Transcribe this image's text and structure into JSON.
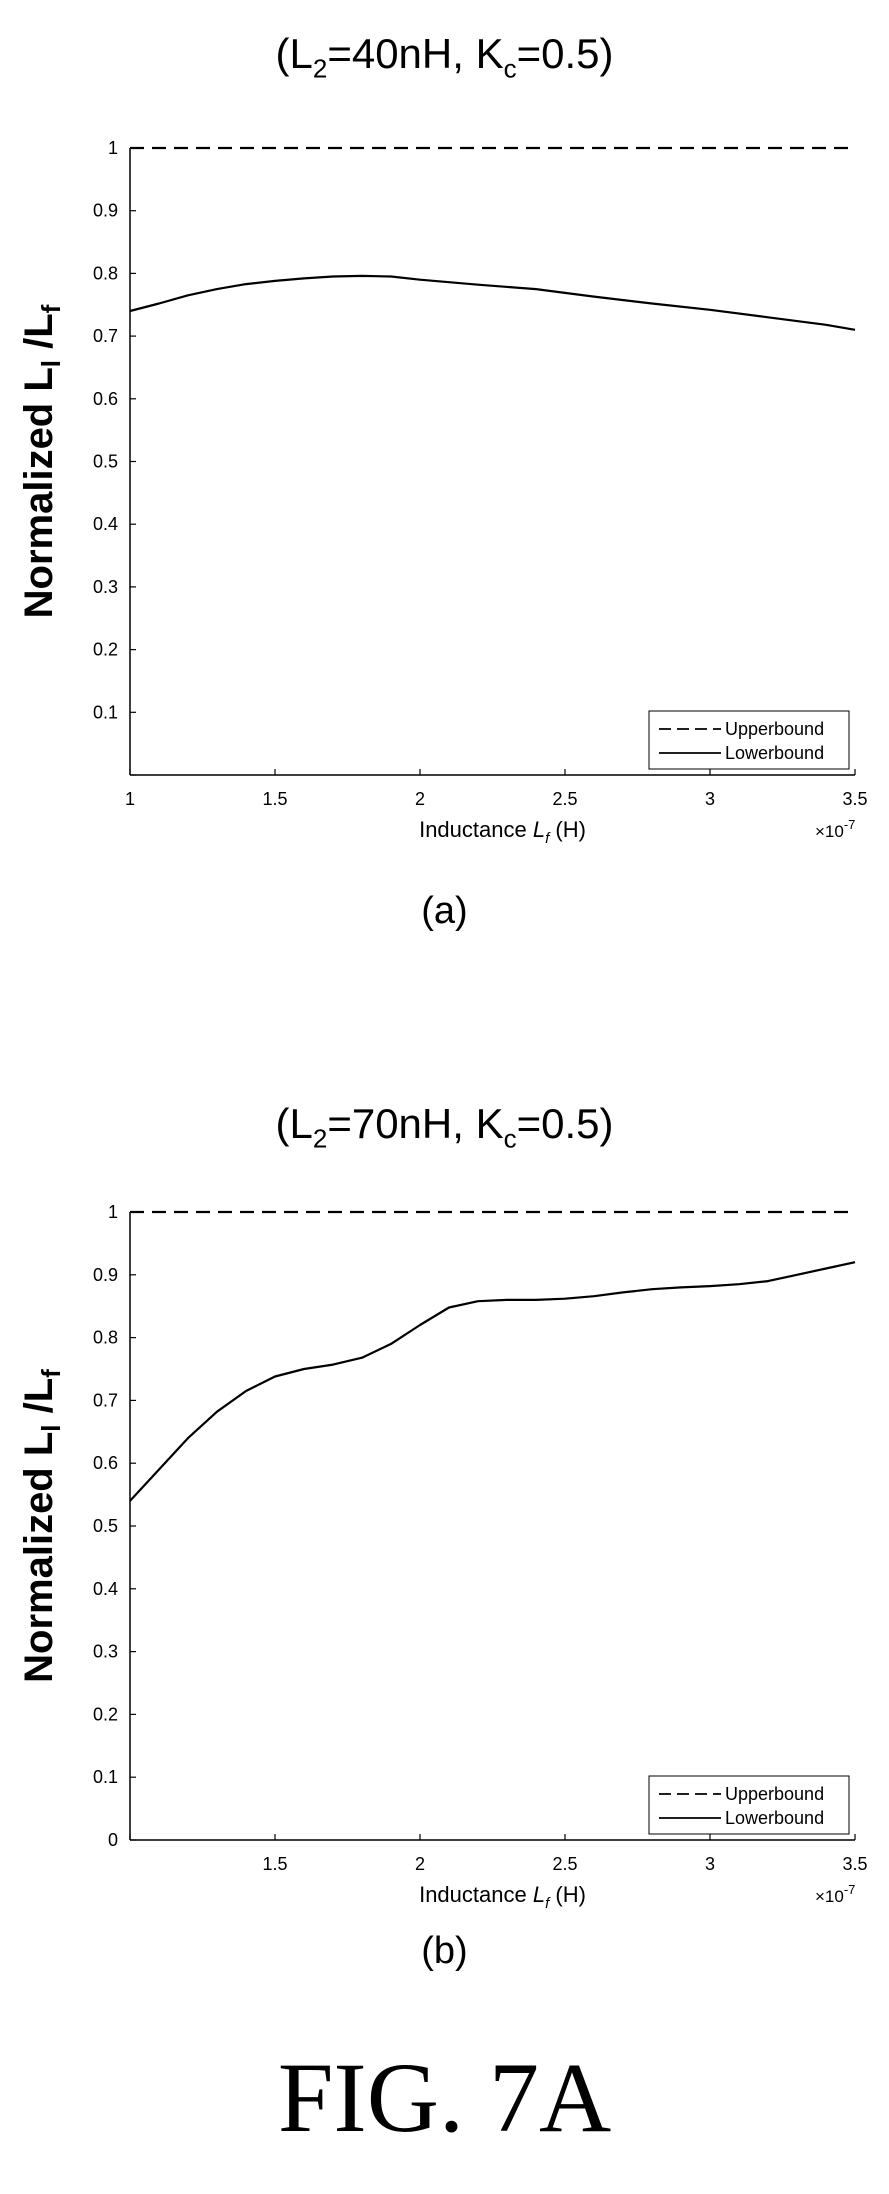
{
  "figure_caption": "FIG. 7A",
  "chart_data": [
    {
      "type": "line",
      "title": "(L2=40nH, Kc=0.5)",
      "title_main": "(L",
      "title_sub1": "2",
      "title_mid": "=40nH, K",
      "title_sub2": "c",
      "title_end": "=0.5)",
      "caption": "(a)",
      "xlabel": "Inductance",
      "xlabel_var": "L",
      "xlabel_sub": "f",
      "xlabel_unit": "(H)",
      "ylabel": "Normalized L",
      "ylabel_sub1": "l",
      "ylabel_mid": " /L",
      "ylabel_sub2": "f",
      "x_scale_label": "×10",
      "x_scale_exp": "-7",
      "xlim": [
        1,
        3.5
      ],
      "ylim": [
        0,
        1
      ],
      "x_ticks": [
        "1",
        "1.5",
        "2",
        "2.5",
        "3",
        "3.5"
      ],
      "y_ticks": [
        "",
        "0.1",
        "0.2",
        "0.3",
        "0.4",
        "0.5",
        "0.6",
        "0.7",
        "0.8",
        "0.9",
        "1"
      ],
      "legend_position": "bottom-right",
      "series": [
        {
          "name": "Upperbound",
          "style": "dashed",
          "x": [
            1,
            3.5
          ],
          "y": [
            1,
            1
          ]
        },
        {
          "name": "Lowerbound",
          "style": "solid",
          "x": [
            1,
            1.1,
            1.2,
            1.3,
            1.4,
            1.5,
            1.6,
            1.7,
            1.8,
            1.9,
            2.0,
            2.2,
            2.4,
            2.6,
            2.8,
            3.0,
            3.2,
            3.4,
            3.5
          ],
          "y": [
            0.74,
            0.752,
            0.765,
            0.775,
            0.783,
            0.788,
            0.792,
            0.795,
            0.796,
            0.795,
            0.79,
            0.782,
            0.775,
            0.763,
            0.752,
            0.742,
            0.73,
            0.718,
            0.71
          ]
        }
      ]
    },
    {
      "type": "line",
      "title": "(L2=70nH, Kc=0.5)",
      "title_main": "(L",
      "title_sub1": "2",
      "title_mid": "=70nH, K",
      "title_sub2": "c",
      "title_end": "=0.5)",
      "caption": "(b)",
      "xlabel": "Inductance",
      "xlabel_var": "L",
      "xlabel_sub": "f",
      "xlabel_unit": "(H)",
      "ylabel": "Normalized L",
      "ylabel_sub1": "l",
      "ylabel_mid": " /L",
      "ylabel_sub2": "f",
      "x_scale_label": "×10",
      "x_scale_exp": "-7",
      "xlim": [
        1,
        3.5
      ],
      "ylim": [
        0,
        1
      ],
      "x_ticks": [
        "",
        "1.5",
        "2",
        "2.5",
        "3",
        "3.5"
      ],
      "y_ticks": [
        "0",
        "0.1",
        "0.2",
        "0.3",
        "0.4",
        "0.5",
        "0.6",
        "0.7",
        "0.8",
        "0.9",
        "1"
      ],
      "legend_position": "bottom-right",
      "series": [
        {
          "name": "Upperbound",
          "style": "dashed",
          "x": [
            1,
            3.5
          ],
          "y": [
            1,
            1
          ]
        },
        {
          "name": "Lowerbound",
          "style": "solid",
          "x": [
            1,
            1.1,
            1.2,
            1.3,
            1.4,
            1.5,
            1.6,
            1.7,
            1.8,
            1.9,
            2.0,
            2.1,
            2.2,
            2.3,
            2.4,
            2.5,
            2.6,
            2.7,
            2.8,
            2.9,
            3.0,
            3.1,
            3.2,
            3.3,
            3.4,
            3.5
          ],
          "y": [
            0.54,
            0.59,
            0.64,
            0.682,
            0.715,
            0.738,
            0.75,
            0.757,
            0.768,
            0.79,
            0.82,
            0.848,
            0.858,
            0.86,
            0.86,
            0.862,
            0.866,
            0.872,
            0.877,
            0.88,
            0.882,
            0.885,
            0.89,
            0.9,
            0.91,
            0.92
          ]
        }
      ]
    }
  ]
}
